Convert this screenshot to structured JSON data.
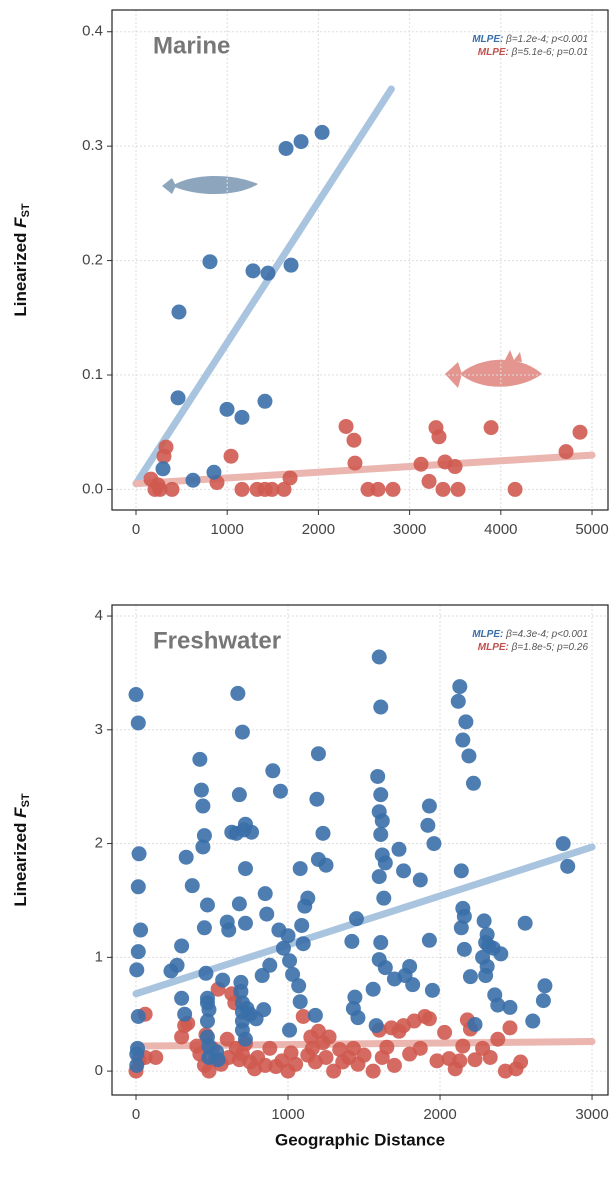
{
  "chart_data": [
    {
      "type": "scatter",
      "title": "Marine",
      "y_label": {
        "text": "Linearized",
        "var": "F",
        "sub": "ST"
      },
      "xlim": [
        -263,
        5175
      ],
      "ylim": [
        -0.018,
        0.419
      ],
      "xticks": [
        0,
        1000,
        2000,
        3000,
        4000,
        5000
      ],
      "yticks": [
        {
          "value": 0,
          "label": "0.0"
        },
        0.1,
        0.2,
        0.3,
        0.4
      ],
      "grid": true,
      "annotations": [
        {
          "label": "MLPE:",
          "text": "β=1.2e-4; p<0.001",
          "color": "#3a6fa8"
        },
        {
          "label": "MLPE:",
          "text": "β=5.1e-6; p=0.01",
          "color": "#c0504d"
        }
      ],
      "fits": [
        {
          "color": "#a9c4df",
          "x": [
            0,
            2800
          ],
          "y": [
            0.005,
            0.35
          ]
        },
        {
          "color": "#ebb5b0",
          "x": [
            0,
            5000
          ],
          "y": [
            0.005,
            0.03
          ]
        }
      ],
      "series": [
        {
          "color": "#3a6fa8",
          "x": [
            2040,
            1810,
            1645,
            1700,
            1283,
            1447,
            811,
            471,
            461,
            998,
            1162,
            1414,
            855,
            625,
            296
          ],
          "y": [
            0.312,
            0.304,
            0.298,
            0.196,
            0.191,
            0.189,
            0.199,
            0.155,
            0.08,
            0.07,
            0.063,
            0.077,
            0.015,
            0.008,
            0.018
          ]
        },
        {
          "color": "#cf5a50",
          "x": [
            164,
            208,
            263,
            395,
            307,
            329,
            241,
            1042,
            888,
            1162,
            1327,
            1414,
            1491,
            1623,
            1689,
            2303,
            2390,
            2401,
            2544,
            2654,
            2818,
            3125,
            3213,
            3289,
            3322,
            3388,
            3498,
            3366,
            3531,
            3893,
            4156,
            4715,
            4868
          ],
          "y": [
            0.009,
            0,
            0,
            0,
            0.029,
            0.037,
            0.004,
            0.029,
            0.006,
            0,
            0,
            0,
            0,
            0,
            0.01,
            0.055,
            0.043,
            0.023,
            0,
            0,
            0,
            0.022,
            0.007,
            0.054,
            0.046,
            0.024,
            0.02,
            0,
            0,
            0.054,
            0,
            0.033,
            0.05
          ]
        }
      ]
    },
    {
      "type": "scatter",
      "title": "Freshwater",
      "y_label": {
        "text": "Linearized",
        "var": "F",
        "sub": "ST"
      },
      "x_label": "Geographic Distance",
      "xlim": [
        -158,
        3105
      ],
      "ylim": [
        -0.21,
        4.097
      ],
      "xticks": [
        0,
        1000,
        2000,
        3000
      ],
      "yticks": [
        0,
        1,
        2,
        3,
        4
      ],
      "grid": true,
      "annotations": [
        {
          "label": "MLPE:",
          "text": "β=4.3e-4; p<0.001",
          "color": "#3a6fa8"
        },
        {
          "label": "MLPE:",
          "text": "β=1.8e-5; p=0.26",
          "color": "#c0504d"
        }
      ],
      "fits": [
        {
          "color": "#a9c4df",
          "x": [
            0,
            3000
          ],
          "y": [
            0.68,
            1.97
          ]
        },
        {
          "color": "#ebb5b0",
          "x": [
            0,
            3000
          ],
          "y": [
            0.22,
            0.26
          ]
        }
      ],
      "series": [
        {
          "color": "#3a6fa8",
          "x": [
            0,
            15,
            20,
            15,
            30,
            15,
            5,
            15,
            5,
            5,
            10,
            230,
            270,
            300,
            330,
            370,
            420,
            430,
            440,
            450,
            440,
            470,
            450,
            460,
            470,
            480,
            470,
            470,
            480,
            480,
            470,
            300,
            320,
            540,
            530,
            570,
            600,
            610,
            630,
            670,
            680,
            660,
            700,
            720,
            710,
            760,
            720,
            680,
            720,
            690,
            700,
            700,
            700,
            700,
            720,
            690,
            730,
            750,
            830,
            850,
            860,
            880,
            840,
            790,
            900,
            950,
            940,
            970,
            1000,
            1010,
            1030,
            1010,
            1090,
            1100,
            1110,
            1130,
            1080,
            1070,
            1080,
            1200,
            1190,
            1200,
            1230,
            1250,
            1180,
            1420,
            1450,
            1440,
            1430,
            1460,
            1600,
            1610,
            1590,
            1610,
            1600,
            1620,
            1610,
            1620,
            1640,
            1600,
            1630,
            1610,
            1600,
            1640,
            1580,
            1560,
            1730,
            1760,
            1770,
            1800,
            1820,
            1700,
            1870,
            1930,
            1920,
            1960,
            1930,
            1950,
            2130,
            2120,
            2170,
            2150,
            2190,
            2220,
            2140,
            2150,
            2160,
            2140,
            2160,
            2200,
            2230,
            2290,
            2310,
            2300,
            2320,
            2280,
            2310,
            2300,
            2350,
            2400,
            2360,
            2380,
            2460,
            2560,
            2610,
            2690,
            2680,
            2810,
            2840
          ],
          "y": [
            3.31,
            3.06,
            1.91,
            1.62,
            1.24,
            1.05,
            0.89,
            0.48,
            0.15,
            0.05,
            0.2,
            0.88,
            0.93,
            1.1,
            1.88,
            1.63,
            2.74,
            2.47,
            2.33,
            2.07,
            1.97,
            1.46,
            1.26,
            0.86,
            0.64,
            0.54,
            0.44,
            0.3,
            0.22,
            0.12,
            0.6,
            0.64,
            0.5,
            0.1,
            0.17,
            0.8,
            1.31,
            1.24,
            2.1,
            3.32,
            2.43,
            2.09,
            2.98,
            2.17,
            2.12,
            2.1,
            1.78,
            1.47,
            1.3,
            0.78,
            0.6,
            0.52,
            0.44,
            0.36,
            0.28,
            0.7,
            0.55,
            0.5,
            0.84,
            1.56,
            1.38,
            0.93,
            0.54,
            0.46,
            2.64,
            2.46,
            1.24,
            1.08,
            1.19,
            0.97,
            0.85,
            0.36,
            1.28,
            1.12,
            1.45,
            1.52,
            1.78,
            0.75,
            0.61,
            2.79,
            2.39,
            1.86,
            2.09,
            1.81,
            0.49,
            1.14,
            1.34,
            0.65,
            0.55,
            0.47,
            3.64,
            3.2,
            2.59,
            2.43,
            2.28,
            2.2,
            2.08,
            1.9,
            1.83,
            1.71,
            1.52,
            1.13,
            0.98,
            0.91,
            0.4,
            0.72,
            1.95,
            1.76,
            0.84,
            0.92,
            0.76,
            0.81,
            1.68,
            2.33,
            2.16,
            2.0,
            1.15,
            0.71,
            3.38,
            3.25,
            3.07,
            2.91,
            2.77,
            2.53,
            1.76,
            1.43,
            1.36,
            1.26,
            1.07,
            0.83,
            0.41,
            1.32,
            1.2,
            1.13,
            1.1,
            1.0,
            0.92,
            0.84,
            1.08,
            1.03,
            0.67,
            0.58,
            0.56,
            1.3,
            0.44,
            0.75,
            0.62,
            2.0,
            1.8
          ]
        },
        {
          "color": "#cf5a50",
          "x": [
            0,
            20,
            60,
            130,
            60,
            300,
            320,
            340,
            400,
            420,
            450,
            460,
            480,
            500,
            520,
            540,
            560,
            600,
            610,
            630,
            650,
            660,
            680,
            700,
            720,
            750,
            780,
            800,
            850,
            880,
            920,
            960,
            1000,
            1020,
            1050,
            1100,
            1130,
            1150,
            1160,
            1180,
            1200,
            1230,
            1250,
            1270,
            1300,
            1340,
            1360,
            1400,
            1430,
            1460,
            1500,
            1560,
            1600,
            1620,
            1650,
            1680,
            1700,
            1730,
            1760,
            1800,
            1830,
            1870,
            1900,
            1930,
            1980,
            2030,
            2060,
            2100,
            2130,
            2150,
            2180,
            2200,
            2230,
            2280,
            2330,
            2380,
            2430,
            2460,
            2500,
            2530
          ],
          "y": [
            0.0,
            0.1,
            0.12,
            0.12,
            0.5,
            0.3,
            0.4,
            0.42,
            0.22,
            0.15,
            0.05,
            0.32,
            0.0,
            0.2,
            0.1,
            0.72,
            0.06,
            0.28,
            0.12,
            0.68,
            0.6,
            0.2,
            0.1,
            0.15,
            0.24,
            0.08,
            0.02,
            0.12,
            0.05,
            0.2,
            0.04,
            0.09,
            0.0,
            0.16,
            0.06,
            0.48,
            0.14,
            0.3,
            0.2,
            0.08,
            0.35,
            0.25,
            0.12,
            0.3,
            0.0,
            0.19,
            0.08,
            0.12,
            0.2,
            0.06,
            0.14,
            0.0,
            0.36,
            0.12,
            0.21,
            0.38,
            0.05,
            0.35,
            0.4,
            0.15,
            0.44,
            0.2,
            0.48,
            0.46,
            0.09,
            0.34,
            0.11,
            0.02,
            0.09,
            0.22,
            0.45,
            0.37,
            0.1,
            0.2,
            0.12,
            0.28,
            0.0,
            0.38,
            0.02,
            0.08
          ]
        }
      ]
    }
  ]
}
